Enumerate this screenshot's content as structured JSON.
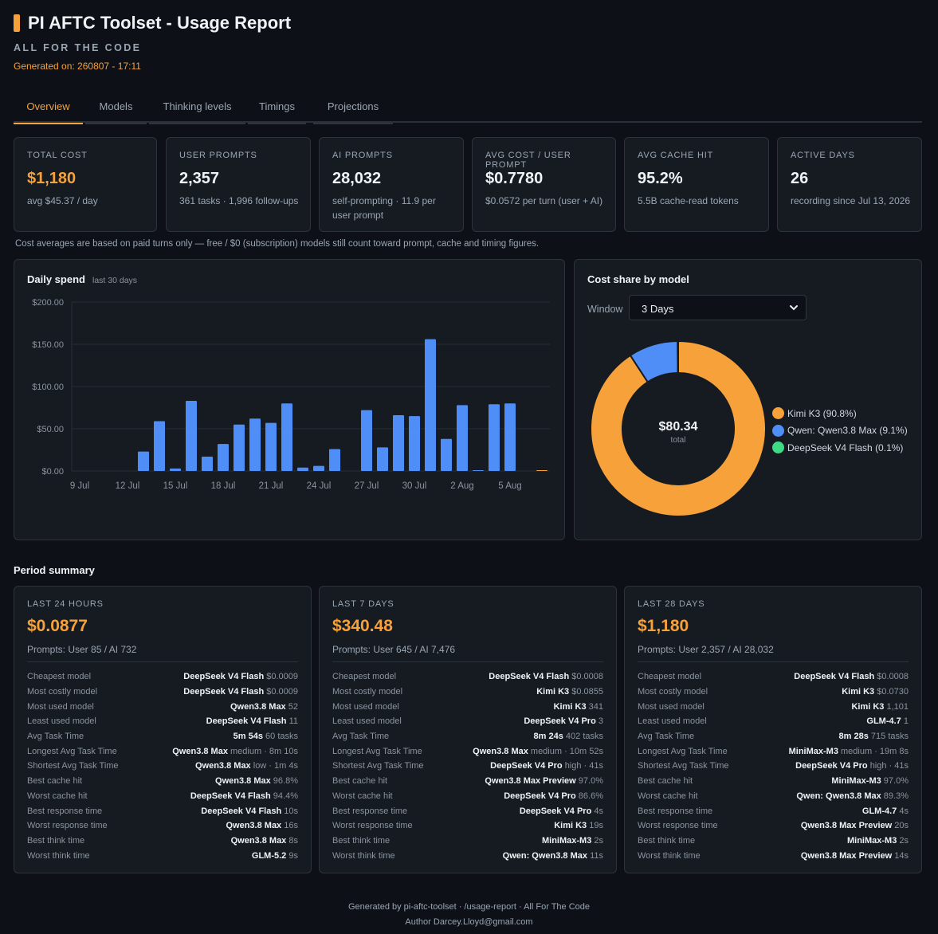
{
  "header": {
    "title": "PI AFTC Toolset - Usage Report",
    "subtitle": "ALL FOR THE CODE",
    "generated": "Generated on: 260807 - 17:11"
  },
  "tabs": [
    {
      "label": "Overview",
      "active": true
    },
    {
      "label": "Models"
    },
    {
      "label": "Thinking levels"
    },
    {
      "label": "Timings"
    },
    {
      "label": "Projections"
    }
  ],
  "stats": [
    {
      "label": "TOTAL COST",
      "value": "$1,180",
      "sub": "avg $45.37 / day",
      "accent": true
    },
    {
      "label": "USER PROMPTS",
      "value": "2,357",
      "sub": "361 tasks · 1,996 follow-ups"
    },
    {
      "label": "AI PROMPTS",
      "value": "28,032",
      "sub": "self-prompting · 11.9 per user prompt"
    },
    {
      "label": "AVG COST / USER PROMPT",
      "value": "$0.7780",
      "sub": "$0.0572 per turn (user + AI)"
    },
    {
      "label": "AVG CACHE HIT",
      "value": "95.2%",
      "sub": "5.5B cache-read tokens"
    },
    {
      "label": "ACTIVE DAYS",
      "value": "26",
      "sub": "recording since Jul 13, 2026"
    }
  ],
  "note": "Cost averages are based on paid turns only — free / $0 (subscription) models still count toward prompt, cache and timing figures.",
  "daily_spend": {
    "title": "Daily spend",
    "subtitle": "last 30 days"
  },
  "cost_share": {
    "title": "Cost share by model",
    "window_label": "Window",
    "window_value": "3 Days",
    "total_value": "$80.34",
    "total_label": "total"
  },
  "chart_data": [
    {
      "type": "bar",
      "title": "Daily spend",
      "subtitle": "last 30 days",
      "categories": [
        "9 Jul",
        "10 Jul",
        "11 Jul",
        "12 Jul",
        "13 Jul",
        "14 Jul",
        "15 Jul",
        "16 Jul",
        "17 Jul",
        "18 Jul",
        "19 Jul",
        "20 Jul",
        "21 Jul",
        "22 Jul",
        "23 Jul",
        "24 Jul",
        "25 Jul",
        "26 Jul",
        "27 Jul",
        "28 Jul",
        "29 Jul",
        "30 Jul",
        "31 Jul",
        "1 Aug",
        "2 Aug",
        "3 Aug",
        "4 Aug",
        "5 Aug",
        "6 Aug",
        "7 Aug"
      ],
      "tick_labels": [
        "9 Jul",
        "12 Jul",
        "15 Jul",
        "18 Jul",
        "21 Jul",
        "24 Jul",
        "27 Jul",
        "30 Jul",
        "2 Aug",
        "5 Aug"
      ],
      "values": [
        0,
        0,
        0,
        0,
        23,
        59,
        3,
        83,
        17,
        32,
        55,
        62,
        57,
        80,
        4,
        6,
        26,
        0,
        72,
        28,
        66,
        65,
        156,
        38,
        78,
        0.3,
        79,
        80,
        0,
        0.4
      ],
      "yticks": [
        "$0.00",
        "$50.00",
        "$100.00",
        "$150.00",
        "$200.00"
      ],
      "ylim": [
        0,
        200
      ],
      "grid": true,
      "color": "#4f8ef7"
    },
    {
      "type": "pie",
      "title": "Cost share by model",
      "total": 80.34,
      "legend_position": "right",
      "slices": [
        {
          "name": "Kimi K3 (90.8%)",
          "value": 90.8,
          "color": "#f7a13a"
        },
        {
          "name": "Qwen: Qwen3.8 Max (9.1%)",
          "value": 9.1,
          "color": "#4f8ef7"
        },
        {
          "name": "DeepSeek V4 Flash (0.1%)",
          "value": 0.1,
          "color": "#3ddc84"
        }
      ]
    }
  ],
  "period_summary": {
    "title": "Period summary",
    "periods": [
      {
        "label": "LAST 24 HOURS",
        "value": "$0.0877",
        "prompts": "Prompts: User 85 / AI 732",
        "rows": [
          {
            "k": "Cheapest model",
            "v": "DeepSeek V4 Flash",
            "d": "$0.0009"
          },
          {
            "k": "Most costly model",
            "v": "DeepSeek V4 Flash",
            "d": "$0.0009"
          },
          {
            "k": "Most used model",
            "v": "Qwen3.8 Max",
            "d": "52"
          },
          {
            "k": "Least used model",
            "v": "DeepSeek V4 Flash",
            "d": "11"
          },
          {
            "k": "Avg Task Time",
            "v": "5m 54s",
            "d": "60 tasks"
          },
          {
            "k": "Longest Avg Task Time",
            "v": "Qwen3.8 Max",
            "d": "medium · 8m 10s"
          },
          {
            "k": "Shortest Avg Task Time",
            "v": "Qwen3.8 Max",
            "d": "low · 1m 4s"
          },
          {
            "k": "Best cache hit",
            "v": "Qwen3.8 Max",
            "d": "96.8%"
          },
          {
            "k": "Worst cache hit",
            "v": "DeepSeek V4 Flash",
            "d": "94.4%"
          },
          {
            "k": "Best response time",
            "v": "DeepSeek V4 Flash",
            "d": "10s"
          },
          {
            "k": "Worst response time",
            "v": "Qwen3.8 Max",
            "d": "16s"
          },
          {
            "k": "Best think time",
            "v": "Qwen3.8 Max",
            "d": "8s"
          },
          {
            "k": "Worst think time",
            "v": "GLM-5.2",
            "d": "9s"
          }
        ]
      },
      {
        "label": "LAST 7 DAYS",
        "value": "$340.48",
        "prompts": "Prompts: User 645 / AI 7,476",
        "rows": [
          {
            "k": "Cheapest model",
            "v": "DeepSeek V4 Flash",
            "d": "$0.0008"
          },
          {
            "k": "Most costly model",
            "v": "Kimi K3",
            "d": "$0.0855"
          },
          {
            "k": "Most used model",
            "v": "Kimi K3",
            "d": "341"
          },
          {
            "k": "Least used model",
            "v": "DeepSeek V4 Pro",
            "d": "3"
          },
          {
            "k": "Avg Task Time",
            "v": "8m 24s",
            "d": "402 tasks"
          },
          {
            "k": "Longest Avg Task Time",
            "v": "Qwen3.8 Max",
            "d": "medium · 10m 52s"
          },
          {
            "k": "Shortest Avg Task Time",
            "v": "DeepSeek V4 Pro",
            "d": "high · 41s"
          },
          {
            "k": "Best cache hit",
            "v": "Qwen3.8 Max Preview",
            "d": "97.0%"
          },
          {
            "k": "Worst cache hit",
            "v": "DeepSeek V4 Pro",
            "d": "86.6%"
          },
          {
            "k": "Best response time",
            "v": "DeepSeek V4 Pro",
            "d": "4s"
          },
          {
            "k": "Worst response time",
            "v": "Kimi K3",
            "d": "19s"
          },
          {
            "k": "Best think time",
            "v": "MiniMax-M3",
            "d": "2s"
          },
          {
            "k": "Worst think time",
            "v": "Qwen: Qwen3.8 Max",
            "d": "11s"
          }
        ]
      },
      {
        "label": "LAST 28 DAYS",
        "value": "$1,180",
        "prompts": "Prompts: User 2,357 / AI 28,032",
        "rows": [
          {
            "k": "Cheapest model",
            "v": "DeepSeek V4 Flash",
            "d": "$0.0008"
          },
          {
            "k": "Most costly model",
            "v": "Kimi K3",
            "d": "$0.0730"
          },
          {
            "k": "Most used model",
            "v": "Kimi K3",
            "d": "1,101"
          },
          {
            "k": "Least used model",
            "v": "GLM-4.7",
            "d": "1"
          },
          {
            "k": "Avg Task Time",
            "v": "8m 28s",
            "d": "715 tasks"
          },
          {
            "k": "Longest Avg Task Time",
            "v": "MiniMax-M3",
            "d": "medium · 19m 8s"
          },
          {
            "k": "Shortest Avg Task Time",
            "v": "DeepSeek V4 Pro",
            "d": "high · 41s"
          },
          {
            "k": "Best cache hit",
            "v": "MiniMax-M3",
            "d": "97.0%"
          },
          {
            "k": "Worst cache hit",
            "v": "Qwen: Qwen3.8 Max",
            "d": "89.3%"
          },
          {
            "k": "Best response time",
            "v": "GLM-4.7",
            "d": "4s"
          },
          {
            "k": "Worst response time",
            "v": "Qwen3.8 Max Preview",
            "d": "20s"
          },
          {
            "k": "Best think time",
            "v": "MiniMax-M3",
            "d": "2s"
          },
          {
            "k": "Worst think time",
            "v": "Qwen3.8 Max Preview",
            "d": "14s"
          }
        ]
      }
    ]
  },
  "footer": {
    "line1": "Generated by pi-aftc-toolset · /usage-report · All For The Code",
    "line2": "Author Darcey.Lloyd@gmail.com"
  }
}
